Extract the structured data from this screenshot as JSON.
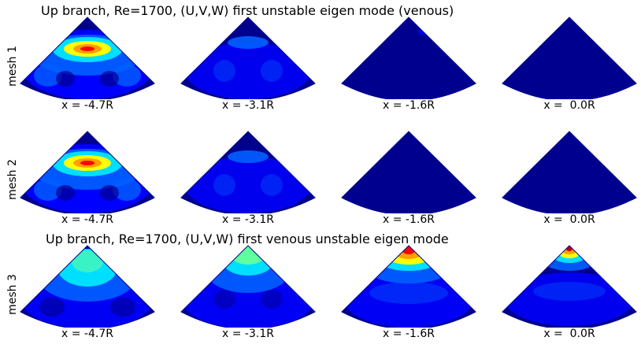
{
  "titles": {
    "top": "Up branch, Re=1700, (U,V,W) first unstable eigen mode (venous)",
    "bottom": "Up branch, Re=1700, (U,V,W) first venous unstable eigen mode"
  },
  "rows": [
    {
      "label": "mesh 1",
      "panels": [
        {
          "caption": "x = -4.7R",
          "pattern": "strong-lower"
        },
        {
          "caption": "x = -3.1R",
          "pattern": "weak-lower"
        },
        {
          "caption": "x = -1.6R",
          "pattern": "near-zero"
        },
        {
          "caption": "x =  0.0R",
          "pattern": "uniform-zero"
        }
      ]
    },
    {
      "label": "mesh 2",
      "panels": [
        {
          "caption": "x = -4.7R",
          "pattern": "strong-lower"
        },
        {
          "caption": "x = -3.1R",
          "pattern": "weak-lower"
        },
        {
          "caption": "x = -1.6R",
          "pattern": "uniform-zero"
        },
        {
          "caption": "x =  0.0R",
          "pattern": "uniform-zero"
        }
      ]
    },
    {
      "label": "mesh 3",
      "panels": [
        {
          "caption": "x = -4.7R",
          "pattern": "apex-cyan"
        },
        {
          "caption": "x = -3.1R",
          "pattern": "apex-green"
        },
        {
          "caption": "x = -1.6R",
          "pattern": "apex-red"
        },
        {
          "caption": "x =  0.0R",
          "pattern": "apex-red-tight"
        }
      ]
    }
  ],
  "colormap": {
    "dark_blue": "#00008f",
    "blue": "#0000ff",
    "azure": "#0060ff",
    "cyan": "#00dfff",
    "green": "#5fff9f",
    "yellow": "#ffff00",
    "orange": "#ff9f00",
    "red": "#ff0000",
    "dark_red": "#bf0000"
  }
}
